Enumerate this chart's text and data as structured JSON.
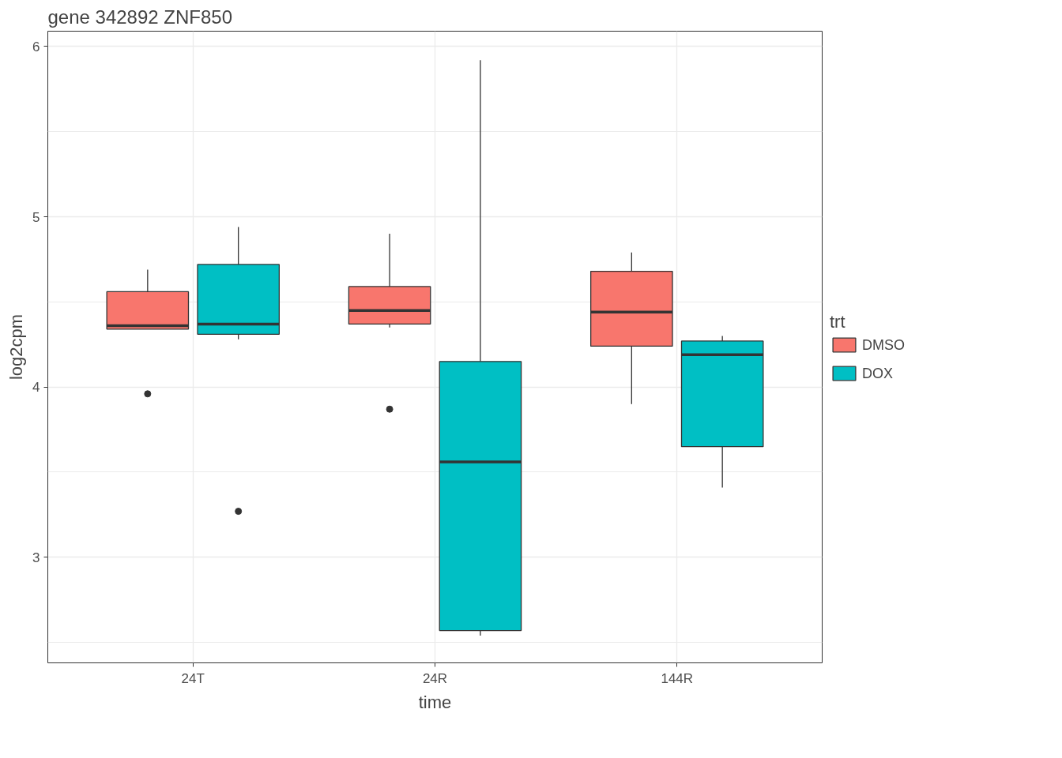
{
  "chart_data": {
    "type": "box",
    "title": "gene 342892 ZNF850",
    "xlabel": "time",
    "ylabel": "log2cpm",
    "legend_title": "trt",
    "legend": "right",
    "grid": true,
    "categories": [
      "24T",
      "24R",
      "144R"
    ],
    "ylim": [
      2.38,
      6.09
    ],
    "yticks": [
      3,
      4,
      5,
      6
    ],
    "series": [
      {
        "name": "DMSO",
        "color": "#f8766d",
        "boxes": [
          {
            "low": 4.34,
            "q1": 4.34,
            "median": 4.36,
            "q3": 4.56,
            "high": 4.69,
            "outliers": [
              3.96
            ]
          },
          {
            "low": 4.35,
            "q1": 4.37,
            "median": 4.45,
            "q3": 4.59,
            "high": 4.9,
            "outliers": [
              3.87
            ]
          },
          {
            "low": 3.9,
            "q1": 4.24,
            "median": 4.44,
            "q3": 4.68,
            "high": 4.79
          }
        ]
      },
      {
        "name": "DOX",
        "color": "#00bfc4",
        "boxes": [
          {
            "low": 4.28,
            "q1": 4.31,
            "median": 4.37,
            "q3": 4.72,
            "high": 4.94,
            "outliers": [
              3.27
            ]
          },
          {
            "low": 2.54,
            "q1": 2.57,
            "median": 3.56,
            "q3": 4.15,
            "high": 5.92
          },
          {
            "low": 3.41,
            "q1": 3.65,
            "median": 4.19,
            "q3": 4.27,
            "high": 4.3
          }
        ]
      }
    ]
  }
}
